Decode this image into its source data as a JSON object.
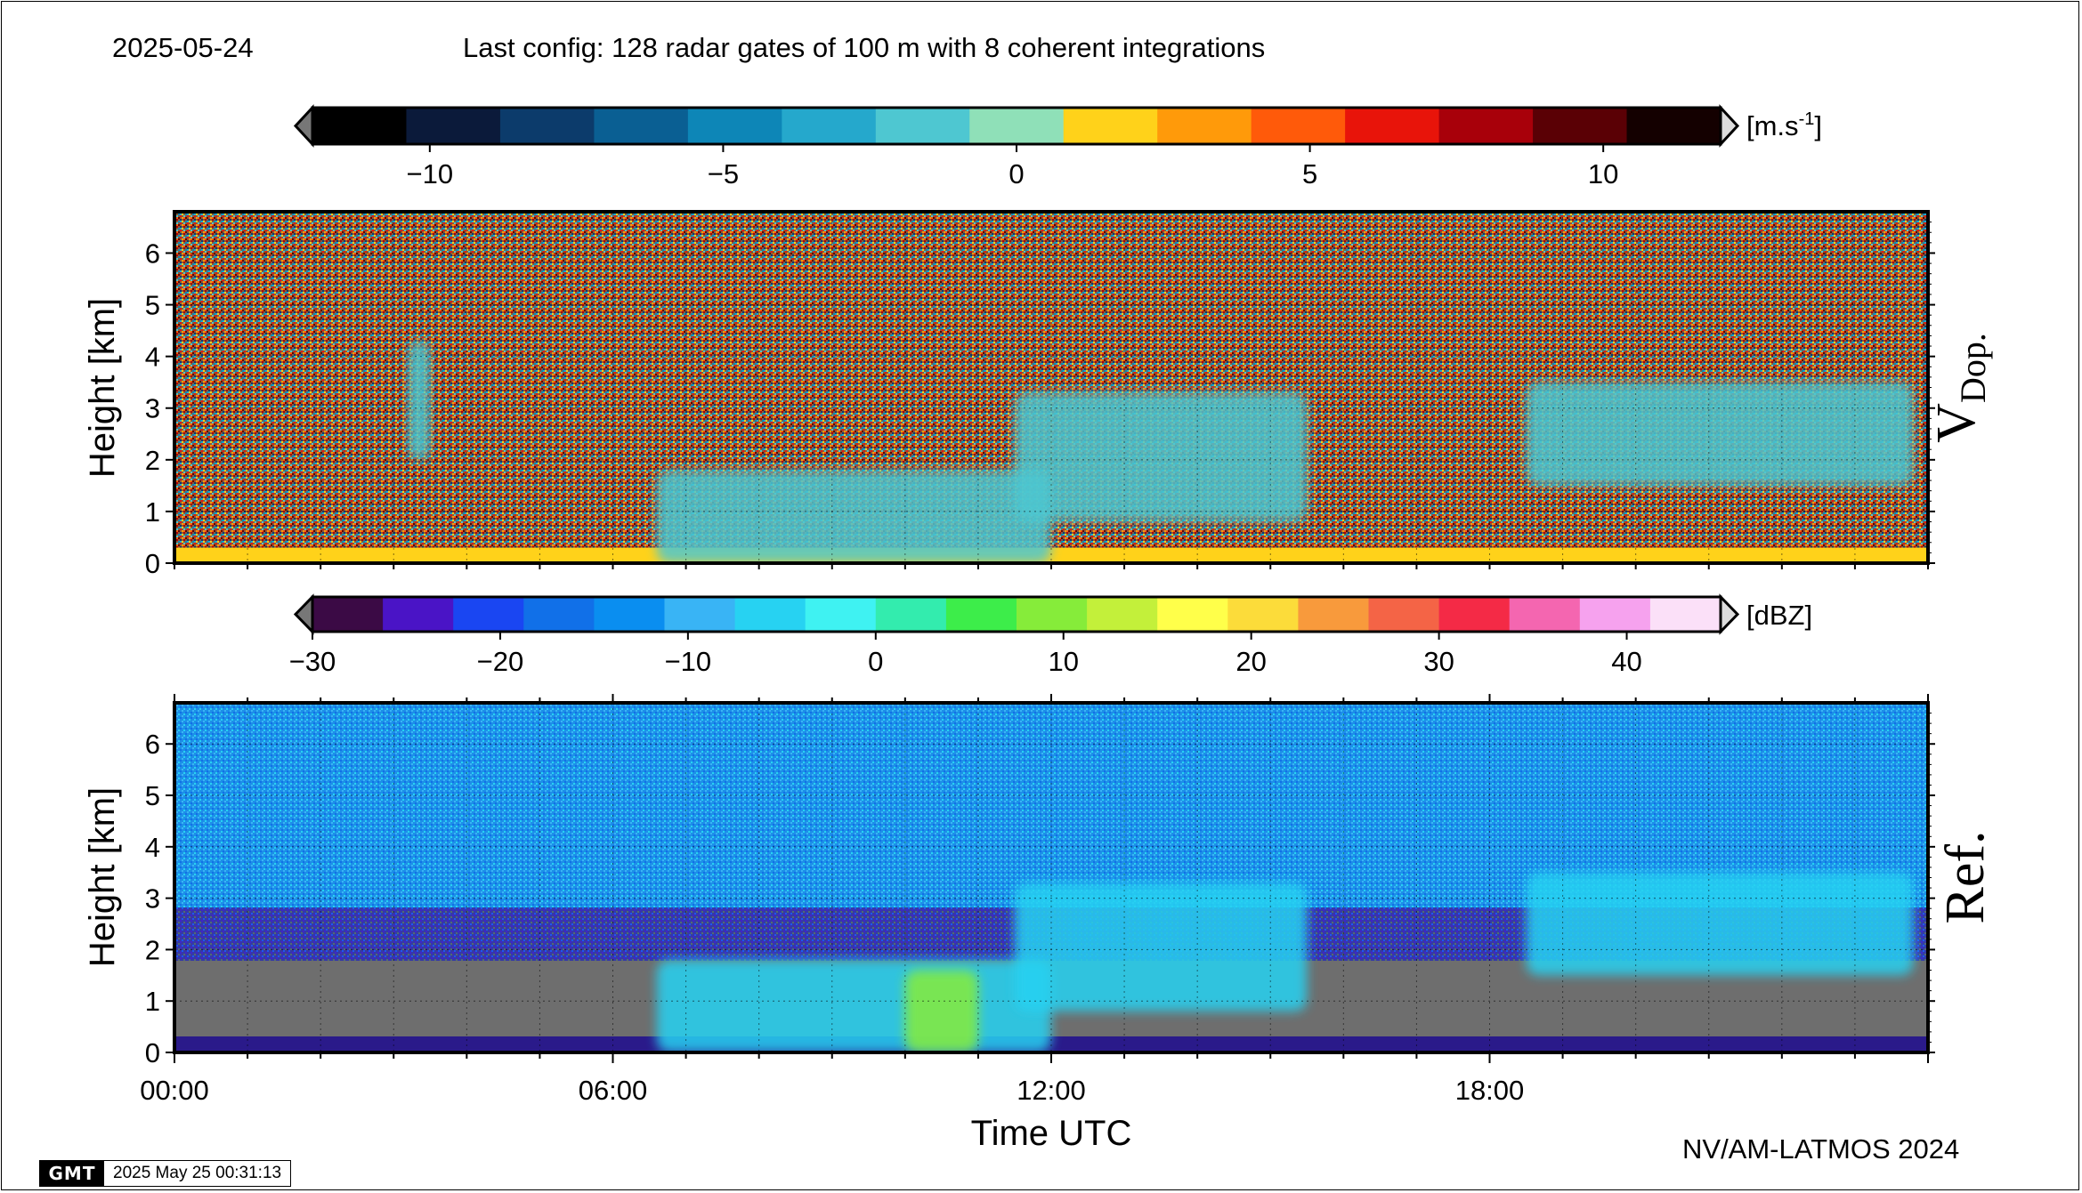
{
  "header": {
    "date": "2025-05-24",
    "config": "Last config: 128 radar gates of 100 m with 8 coherent integrations"
  },
  "footer": {
    "credit": "NV/AM-LATMOS 2024",
    "gmt_logo": "GMT",
    "timestamp": "2025 May 25 00:31:13"
  },
  "chart_data": [
    {
      "type": "heatmap",
      "panel_label": "V",
      "panel_label_sub": "Dop.",
      "ylabel": "Height [km]",
      "ylim": [
        0,
        6.8
      ],
      "yticks": [
        "0",
        "1",
        "2",
        "3",
        "4",
        "5",
        "6"
      ],
      "xlim": [
        0,
        24
      ],
      "grid": true,
      "colorbar": {
        "unit_base": "[m.s",
        "unit_sup": "-1",
        "unit_end": "]",
        "range": [
          -12,
          12
        ],
        "tick_labels": [
          "−10",
          "−5",
          "0",
          "5",
          "10"
        ],
        "tick_values": [
          -10,
          -5,
          0,
          5,
          10
        ],
        "extend": "both"
      },
      "features": [
        {
          "kind": "noise",
          "height_km": [
            0.3,
            6.8
          ],
          "time_h": [
            0,
            24
          ]
        },
        {
          "kind": "surface_band",
          "height_km": [
            0,
            0.3
          ],
          "value_ms": 1.5
        },
        {
          "kind": "echo",
          "time_h": [
            6.6,
            12.0
          ],
          "height_km": [
            0,
            1.8
          ],
          "value_ms": -2
        },
        {
          "kind": "echo",
          "time_h": [
            11.5,
            15.5
          ],
          "height_km": [
            0.8,
            3.3
          ],
          "value_ms": -1
        },
        {
          "kind": "echo",
          "time_h": [
            18.5,
            23.8
          ],
          "height_km": [
            1.5,
            3.5
          ],
          "value_ms": -1
        },
        {
          "kind": "echo",
          "time_h": [
            3.2,
            3.5
          ],
          "height_km": [
            2.0,
            4.3
          ],
          "value_ms": -1
        }
      ]
    },
    {
      "type": "heatmap",
      "panel_label": "Ref.",
      "ylabel": "Height [km]",
      "xlabel": "Time UTC",
      "ylim": [
        0,
        6.8
      ],
      "yticks": [
        "0",
        "1",
        "2",
        "3",
        "4",
        "5",
        "6"
      ],
      "xlim": [
        0,
        24
      ],
      "xticks": [
        "00:00",
        "06:00",
        "12:00",
        "18:00"
      ],
      "xtick_values": [
        0,
        6,
        12,
        18
      ],
      "grid": true,
      "colorbar": {
        "unit": "[dBZ]",
        "range": [
          -30,
          45
        ],
        "tick_labels": [
          "−30",
          "−20",
          "−10",
          "0",
          "10",
          "20",
          "30",
          "40"
        ],
        "tick_values": [
          -30,
          -20,
          -10,
          0,
          10,
          20,
          30,
          40
        ],
        "extend": "both"
      },
      "features": [
        {
          "kind": "background",
          "height_km": [
            2.0,
            6.8
          ],
          "value_dbz": -12
        },
        {
          "kind": "background",
          "height_km": [
            1.2,
            2.0
          ],
          "value_dbz": -25
        },
        {
          "kind": "background",
          "height_km": [
            0.3,
            1.2
          ],
          "value_dbz": -35
        },
        {
          "kind": "echo",
          "time_h": [
            6.6,
            12.0
          ],
          "height_km": [
            0,
            1.8
          ],
          "value_dbz": -5
        },
        {
          "kind": "echo",
          "time_h": [
            10.0,
            11.0
          ],
          "height_km": [
            0,
            1.6
          ],
          "value_dbz": 10
        },
        {
          "kind": "echo",
          "time_h": [
            11.5,
            15.5
          ],
          "height_km": [
            0.8,
            3.3
          ],
          "value_dbz": -5
        },
        {
          "kind": "echo",
          "time_h": [
            18.5,
            23.8
          ],
          "height_km": [
            1.5,
            3.5
          ],
          "value_dbz": -5
        }
      ]
    }
  ],
  "colors": {
    "doppler_scale": [
      "#000000",
      "#0b1a3a",
      "#0c3b6b",
      "#0a5f93",
      "#0d86b7",
      "#25a8cc",
      "#4ec7d1",
      "#8fe0b8",
      "#ffd21a",
      "#ff9a0a",
      "#ff5a0a",
      "#e8140a",
      "#a8000a",
      "#5a0005",
      "#140000"
    ],
    "dbz_scale": [
      "#3b0a45",
      "#4a14c6",
      "#1a46f2",
      "#1170e8",
      "#0a8ef0",
      "#39b4f5",
      "#27d2f2",
      "#3ff2f2",
      "#33ecae",
      "#3ded4a",
      "#86ec3a",
      "#c3f03a",
      "#ffff4a",
      "#fcdc3a",
      "#f89a3c",
      "#f46446",
      "#f42a46",
      "#f466b0",
      "#f6a2ee",
      "#fbe0f8"
    ],
    "noise_floor": "#6e6e6e"
  }
}
